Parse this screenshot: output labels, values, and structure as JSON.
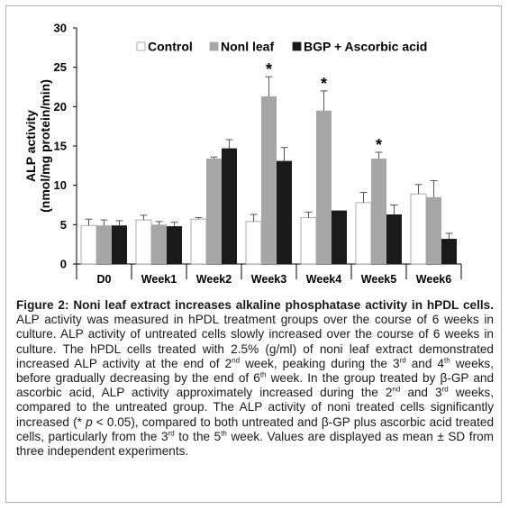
{
  "chart_data": {
    "type": "bar",
    "title": "",
    "xlabel": "",
    "ylabel_line1": "ALP activity",
    "ylabel_line2": "(nmol/mg protein/min)",
    "ylim": [
      0,
      30
    ],
    "yticks": [
      0,
      5,
      10,
      15,
      20,
      25,
      30
    ],
    "grid": false,
    "legend_position": "top",
    "categories": [
      "D0",
      "Week1",
      "Week2",
      "Week3",
      "Week4",
      "Week5",
      "Week6"
    ],
    "series": [
      {
        "name": "Control",
        "color": "#ffffff",
        "values": [
          4.9,
          5.6,
          5.7,
          5.4,
          5.9,
          7.8,
          8.9
        ],
        "errors": [
          0.8,
          0.6,
          0.2,
          0.9,
          0.7,
          1.3,
          1.2
        ]
      },
      {
        "name": "Nonl leaf",
        "color": "#a6a6a6",
        "values": [
          4.9,
          5.0,
          13.4,
          21.3,
          19.5,
          13.4,
          8.5
        ],
        "errors": [
          0.7,
          0.4,
          0.2,
          2.5,
          2.5,
          0.8,
          2.1
        ]
      },
      {
        "name": "BGP + Ascorbic acid",
        "color": "#1a1a1a",
        "values": [
          4.9,
          4.8,
          14.7,
          13.1,
          6.8,
          6.3,
          3.2
        ],
        "errors": [
          0.6,
          0.5,
          1.1,
          1.7,
          0.0,
          1.2,
          0.7
        ]
      }
    ],
    "annotations": [
      {
        "category": "Week3",
        "series": "Nonl leaf",
        "text": "*"
      },
      {
        "category": "Week4",
        "series": "Nonl leaf",
        "text": "*"
      },
      {
        "category": "Week5",
        "series": "Nonl leaf",
        "text": "*"
      }
    ]
  },
  "caption": {
    "bold": "Figure 2: Noni leaf extract increases alkaline phosphatase activity in hPDL cells.",
    "p1": " ALP activity was measured in hPDL treatment groups over the course of 6 weeks in culture.  ALP activity of untreated cells slowly increased over the course of 6 weeks in culture. The hPDL cells treated with 2.5% (g/ml) of noni leaf extract demonstrated increased ALP activity at the end of 2",
    "sup1": "nd",
    "p2": " week, peaking during the 3",
    "sup2": "rd",
    "p3": " and 4",
    "sup3": "th",
    "p4": " weeks, before gradually decreasing by the end of 6",
    "sup4": "th",
    "p5": " week. In the group treated by β-GP and ascorbic acid, ALP activity approximately increased during the 2",
    "sup5": "nd",
    "p6": " and 3",
    "sup6": "rd",
    "p7": " weeks, compared to the untreated group. The ALP activity of noni treated cells significantly increased (* ",
    "italic_p": "p",
    "p8": " < 0.05), compared to both untreated and β-GP plus ascorbic acid treated cells, particularly from the 3",
    "sup7": "rd",
    "p9": " to the 5",
    "sup8": "th",
    "p10": " week. Values are displayed as mean ± SD from three independent experiments."
  }
}
